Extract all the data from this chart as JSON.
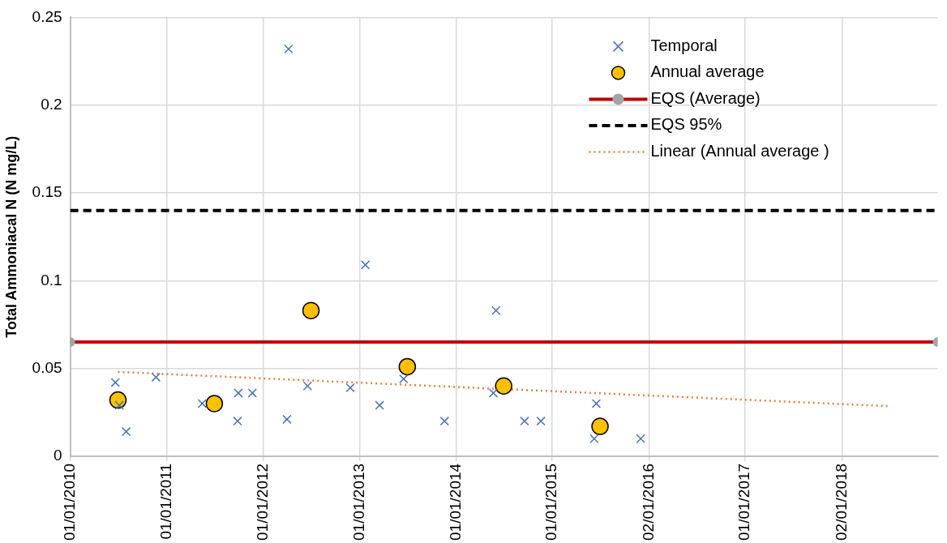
{
  "chart_data": {
    "type": "scatter",
    "ylabel": "Total Ammoniacal N (N mg/L)",
    "xlim": [
      "2010-01-01",
      "2018-12-31"
    ],
    "xticks": [
      {
        "value": "2010-01-01",
        "label": "01/01/2010"
      },
      {
        "value": "2011-01-01",
        "label": "01/01/2011"
      },
      {
        "value": "2012-01-01",
        "label": "01/01/2012"
      },
      {
        "value": "2013-01-01",
        "label": "01/01/2013"
      },
      {
        "value": "2014-01-01",
        "label": "01/01/2014"
      },
      {
        "value": "2015-01-01",
        "label": "01/01/2015"
      },
      {
        "value": "2016-01-02",
        "label": "02/01/2016"
      },
      {
        "value": "2017-01-01",
        "label": "01/01/2017"
      },
      {
        "value": "2018-01-02",
        "label": "02/01/2018"
      }
    ],
    "ylim": [
      0,
      0.25
    ],
    "yticks": [
      0,
      0.05,
      0.1,
      0.15,
      0.2,
      0.25
    ],
    "grid": true,
    "legend": "top right",
    "series": [
      {
        "name": "Temporal",
        "marker": "cross",
        "color": "#4472c4",
        "x": [
          "2010-06-21",
          "2010-07-06",
          "2010-08-01",
          "2010-11-22",
          "2011-05-16",
          "2011-09-27",
          "2011-09-30",
          "2011-11-22",
          "2012-04-07",
          "2012-04-01",
          "2012-06-18",
          "2012-11-27",
          "2013-01-23",
          "2013-03-18",
          "2013-06-17",
          "2013-11-19",
          "2014-05-23",
          "2014-06-02",
          "2014-09-18",
          "2014-11-19",
          "2015-06-17",
          "2015-06-09",
          "2015-12-02"
        ],
        "values": [
          0.042,
          0.029,
          0.014,
          0.045,
          0.03,
          0.02,
          0.036,
          0.036,
          0.232,
          0.021,
          0.04,
          0.039,
          0.109,
          0.029,
          0.044,
          0.02,
          0.036,
          0.083,
          0.02,
          0.02,
          0.03,
          0.01,
          0.01
        ]
      },
      {
        "name": "Annual average",
        "marker": "circle",
        "color": "#ffc000",
        "x": [
          "2010-07-01",
          "2011-07-01",
          "2012-07-01",
          "2013-07-01",
          "2014-07-01",
          "2015-07-01"
        ],
        "values": [
          0.032,
          0.03,
          0.083,
          0.051,
          0.04,
          0.017
        ]
      },
      {
        "name": "EQS (Average)",
        "type": "line",
        "marker": "circle",
        "line_style": "solid",
        "color": "#c00000",
        "colors": [
          "#a5a5a5",
          "#a5a5a5"
        ],
        "x": [
          "2010-01-01",
          "2018-12-31"
        ],
        "values": [
          0.065,
          0.065
        ]
      },
      {
        "name": "EQS 95%",
        "type": "line",
        "marker": "none",
        "line_style": "dashed",
        "color": "#000000",
        "x": [
          "2010-01-01",
          "2018-12-31"
        ],
        "values": [
          0.14,
          0.14
        ]
      },
      {
        "name": "Linear (Annual average )",
        "type": "line",
        "marker": "none",
        "line_style": "dotted",
        "color": "#ed7d31",
        "x": [
          "2010-07-01",
          "2018-07-01"
        ],
        "values": [
          0.048,
          0.0285
        ]
      }
    ]
  }
}
